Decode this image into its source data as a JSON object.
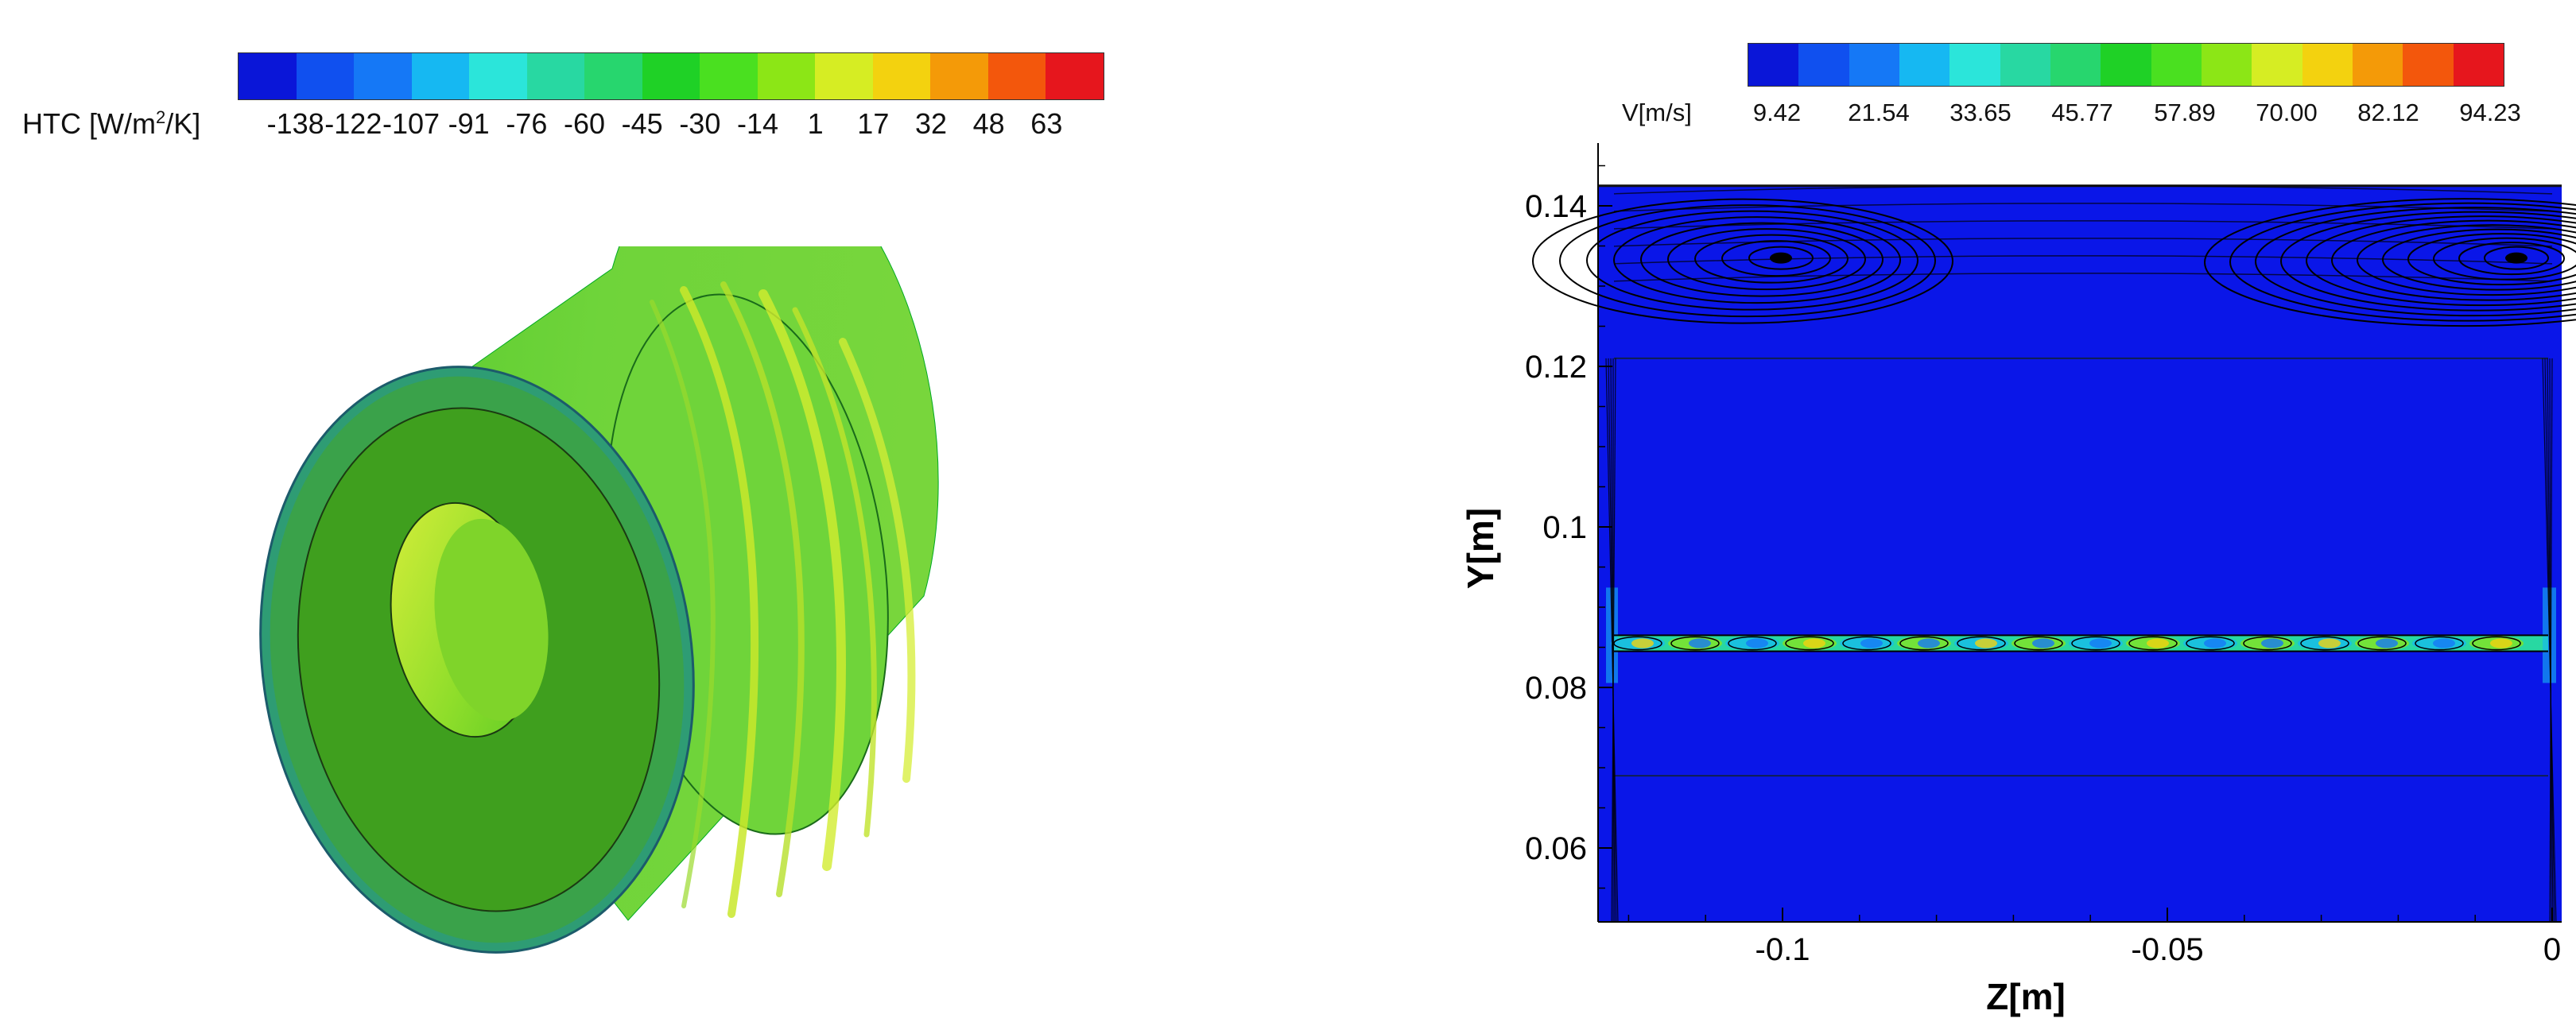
{
  "htc_legend": {
    "title": "HTC [W/m",
    "title_sup": "2",
    "title_tail": "/K]",
    "ticks": [
      "-138",
      "-122",
      "-107",
      "-91",
      "-76",
      "-60",
      "-45",
      "-30",
      "-14",
      "1",
      "17",
      "32",
      "48",
      "63"
    ],
    "colors": [
      "#0a16d8",
      "#1050ef",
      "#1578f6",
      "#16b8f2",
      "#2be5da",
      "#28d8a2",
      "#27d66e",
      "#1fd126",
      "#4ae020",
      "#8ce616",
      "#d6ed23",
      "#f3d20f",
      "#f49a08",
      "#f3570c",
      "#e6161d"
    ]
  },
  "velocity_legend": {
    "title": "V[m/s]",
    "ticks": [
      "9.42",
      "21.54",
      "33.65",
      "45.77",
      "57.89",
      "70.00",
      "82.12",
      "94.23"
    ],
    "colors": [
      "#0a16d8",
      "#1050ef",
      "#1578f6",
      "#16b8f2",
      "#2be5da",
      "#28d8a2",
      "#27d66e",
      "#1fd126",
      "#4ae020",
      "#8ce616",
      "#d6ed23",
      "#f3d20f",
      "#f49a08",
      "#f3570c",
      "#e6161d"
    ]
  },
  "plot": {
    "xlabel": "Z[m]",
    "ylabel": "Y[m]",
    "xticks": [
      "-0.1",
      "-0.05",
      "0"
    ],
    "yticks": [
      "0.14",
      "0.12",
      "0.1",
      "0.08",
      "0.06"
    ]
  }
}
